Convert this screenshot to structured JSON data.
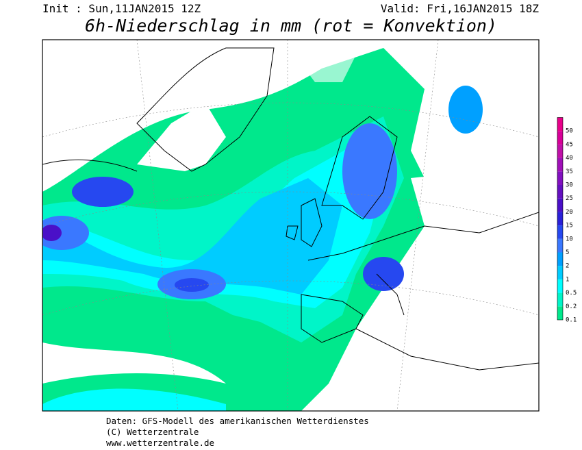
{
  "header": {
    "init": "Init : Sun,11JAN2015 12Z",
    "valid": "Valid: Fri,16JAN2015 18Z",
    "title": "6h-Niederschlag in mm (rot = Konvektion)"
  },
  "legend": {
    "labels": [
      "0.1",
      "0.2",
      "0.5",
      "1",
      "2",
      "5",
      "10",
      "15",
      "20",
      "25",
      "30",
      "35",
      "40",
      "45",
      "50"
    ],
    "colors": [
      "#00e88c",
      "#00f5c8",
      "#00ffff",
      "#00ccff",
      "#00a0ff",
      "#3a78ff",
      "#2648f0",
      "#2a20d8",
      "#4a10c8",
      "#6410c0",
      "#8210c0",
      "#a010b8",
      "#c010a8",
      "#d80098",
      "#e8008a"
    ]
  },
  "footer": {
    "lines": [
      "Daten: GFS-Modell des amerikanischen Wetterdienstes",
      "(C) Wetterzentrale",
      "www.wetterzentrale.de"
    ]
  }
}
